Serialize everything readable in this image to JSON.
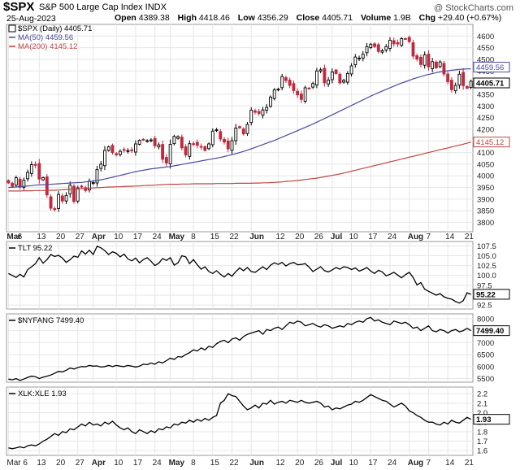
{
  "header": {
    "symbol": "$SPX",
    "name": "S&P 500 Large Cap Index INDX",
    "credit": "@ StockCharts.com",
    "date": "25-Aug-2023",
    "open_label": "Open",
    "open": "4389.38",
    "high_label": "High",
    "high": "4418.46",
    "low_label": "Low",
    "low": "4356.29",
    "close_label": "Close",
    "close": "4405.71",
    "volume_label": "Volume",
    "volume": "1.9B",
    "chg_label": "Chg",
    "chg": "+29.40 (+0.67%)"
  },
  "colors": {
    "up_candle": "#000000",
    "down_candle": "#c0283c",
    "ma50": "#4a4aa0",
    "ma200": "#c04444",
    "grid": "#e6e6e6",
    "line": "#000000"
  },
  "x_axis": {
    "labels": [
      "Mar",
      "6",
      "13",
      "20",
      "27",
      "Apr",
      "10",
      "17",
      "24",
      "May",
      "8",
      "15",
      "22",
      "Jun",
      "12",
      "20",
      "26",
      "Jul",
      "10",
      "17",
      "24",
      "Aug",
      "7",
      "14",
      "21"
    ],
    "bold": [
      "Mar",
      "Apr",
      "May",
      "Jun",
      "Jul",
      "Aug"
    ],
    "bottom_labels": [
      "Mar",
      "6",
      "13",
      "20",
      "27",
      "Apr",
      "10",
      "17",
      "24",
      "May",
      "8",
      "15",
      "22",
      "Jun",
      "12",
      "20",
      "26",
      "Jul",
      "10",
      "17",
      "24",
      "Aug",
      "7",
      "14",
      "21"
    ],
    "bottom_bold": [
      "Apr",
      "May",
      "Jun",
      "Jul",
      "Aug"
    ],
    "bottom_first": "Mar 6"
  },
  "chart_data": [
    {
      "type": "candlestick",
      "title": "$SPX (Daily) 4405.71",
      "series": [
        {
          "name": "$SPX (Daily) 4405.71",
          "close": [
            3970,
            3955,
            3992,
            3951,
            3981,
            4015,
            4048,
            4045,
            3986,
            3992,
            3918,
            3861,
            3855,
            3920,
            3892,
            3916,
            3960,
            3890,
            3948,
            3952,
            3937,
            3977,
            3971,
            4027,
            4050,
            4109,
            4124,
            4100,
            4090,
            4105,
            4109,
            4108,
            4110,
            4137,
            4152,
            4155,
            4151,
            4154,
            4129,
            4133,
            4071,
            4055,
            4135,
            4169,
            4168,
            4120,
            4090,
            4138,
            4137,
            4131,
            4124,
            4109,
            4137,
            4192,
            4198,
            4158,
            4145,
            4116,
            4151,
            4205,
            4206,
            4180,
            4221,
            4282,
            4273,
            4268,
            4283,
            4294,
            4338,
            4369,
            4372,
            4426,
            4409,
            4388,
            4366,
            4348,
            4328,
            4378,
            4376,
            4396,
            4450,
            4455,
            4399,
            4411,
            4446,
            4439,
            4399,
            4410,
            4439,
            4472,
            4510,
            4505,
            4522,
            4555,
            4565,
            4555,
            4534,
            4537,
            4555,
            4582,
            4567,
            4566,
            4589,
            4588,
            4576,
            4514,
            4501,
            4478,
            4519,
            4468,
            4490,
            4464,
            4489,
            4437,
            4404,
            4370,
            4388,
            4436,
            4387,
            4376,
            4406
          ]
        },
        {
          "name": "MA(50) 4459.56",
          "values": [
            3950,
            3951,
            3952,
            3954,
            3955,
            3957,
            3958,
            3960,
            3961,
            3962,
            3963,
            3964,
            3965,
            3966,
            3967,
            3968,
            3969,
            3970,
            3971,
            3972,
            3974,
            3976,
            3978,
            3980,
            3983,
            3986,
            3990,
            3994,
            3998,
            4002,
            4006,
            4010,
            4014,
            4018,
            4021,
            4024,
            4027,
            4030,
            4032,
            4034,
            4036,
            4038,
            4040,
            4043,
            4046,
            4049,
            4052,
            4055,
            4058,
            4061,
            4064,
            4067,
            4070,
            4073,
            4076,
            4079,
            4083,
            4087,
            4091,
            4095,
            4100,
            4105,
            4110,
            4116,
            4122,
            4128,
            4134,
            4140,
            4146,
            4152,
            4159,
            4166,
            4173,
            4180,
            4187,
            4194,
            4201,
            4208,
            4215,
            4222,
            4230,
            4238,
            4246,
            4254,
            4262,
            4270,
            4278,
            4286,
            4294,
            4302,
            4310,
            4318,
            4326,
            4334,
            4342,
            4350,
            4357,
            4364,
            4371,
            4378,
            4385,
            4392,
            4398,
            4404,
            4410,
            4416,
            4421,
            4426,
            4431,
            4435,
            4439,
            4443,
            4446,
            4449,
            4451,
            4453,
            4455,
            4457,
            4458,
            4459,
            4459.56
          ]
        },
        {
          "name": "MA(200) 4145.12",
          "values": [
            3935,
            3935,
            3935,
            3935,
            3936,
            3936,
            3936,
            3937,
            3937,
            3937,
            3937,
            3938,
            3938,
            3939,
            3940,
            3941,
            3942,
            3943,
            3944,
            3945,
            3946,
            3947,
            3948,
            3949,
            3950,
            3951,
            3952,
            3952,
            3953,
            3953,
            3954,
            3955,
            3955,
            3956,
            3957,
            3958,
            3959,
            3959,
            3960,
            3961,
            3962,
            3963,
            3964,
            3964,
            3964,
            3965,
            3965,
            3965,
            3966,
            3966,
            3966,
            3966,
            3966,
            3966,
            3967,
            3967,
            3967,
            3967,
            3967,
            3968,
            3968,
            3968,
            3968,
            3968,
            3969,
            3969,
            3970,
            3970,
            3971,
            3972,
            3973,
            3974,
            3976,
            3977,
            3978,
            3980,
            3982,
            3984,
            3986,
            3988,
            3990,
            3993,
            3996,
            3999,
            4002,
            4005,
            4008,
            4012,
            4016,
            4020,
            4024,
            4028,
            4032,
            4036,
            4040,
            4044,
            4048,
            4052,
            4056,
            4060,
            4064,
            4068,
            4072,
            4076,
            4080,
            4084,
            4088,
            4092,
            4096,
            4100,
            4104,
            4108,
            4112,
            4116,
            4120,
            4124,
            4128,
            4132,
            4136,
            4140,
            4145.12
          ]
        }
      ],
      "ylim": [
        3760,
        4650
      ],
      "yticks": [
        3800,
        3850,
        3900,
        3950,
        4000,
        4050,
        4100,
        4150,
        4200,
        4250,
        4300,
        4350,
        4400,
        4450,
        4500,
        4550,
        4600
      ],
      "last_value": "4405.71",
      "ma50_value": "4459.56",
      "ma200_value": "4145.12",
      "grid": true
    },
    {
      "type": "line",
      "series": [
        {
          "name": "TLT 95.22",
          "values": [
            100.5,
            100.0,
            99.5,
            100.3,
            99.6,
            101.5,
            102.2,
            103.0,
            104.5,
            103.1,
            104.0,
            105.3,
            104.8,
            105.1,
            104.4,
            103.3,
            104.0,
            104.9,
            104.6,
            106.2,
            105.4,
            106.4,
            105.3,
            107.4,
            107.0,
            106.3,
            105.3,
            106.0,
            105.6,
            104.7,
            105.4,
            104.2,
            103.7,
            104.4,
            103.2,
            104.0,
            104.5,
            103.6,
            102.5,
            103.1,
            104.3,
            103.8,
            104.5,
            102.6,
            103.2,
            105.0,
            104.7,
            103.0,
            104.0,
            102.7,
            101.6,
            102.2,
            101.0,
            100.5,
            101.2,
            100.3,
            99.6,
            100.5,
            99.8,
            101.0,
            101.9,
            101.2,
            102.0,
            101.0,
            100.8,
            101.5,
            102.2,
            101.5,
            102.6,
            103.2,
            102.8,
            103.3,
            102.4,
            103.0,
            103.3,
            102.7,
            102.8,
            103.0,
            102.1,
            101.0,
            101.6,
            102.2,
            101.2,
            100.9,
            101.4,
            102.0,
            101.6,
            102.2,
            102.0,
            101.5,
            101.9,
            101.1,
            101.5,
            102.0,
            101.1,
            100.5,
            101.3,
            100.9,
            99.9,
            100.3,
            100.8,
            100.1,
            99.4,
            100.2,
            100.8,
            99.5,
            97.6,
            98.2,
            96.5,
            96.0,
            95.5,
            95.0,
            95.4,
            94.6,
            94.2,
            94.0,
            93.4,
            93.0,
            93.6,
            95.6,
            95.22
          ]
        }
      ],
      "ylim": [
        91.5,
        108.6
      ],
      "yticks": [
        92.5,
        95.0,
        97.5,
        100.0,
        102.5,
        105.0,
        107.5
      ],
      "last_value": "95.22",
      "grid": true
    },
    {
      "type": "line",
      "series": [
        {
          "name": "$NYFANG 7499.40",
          "values": [
            5480,
            5450,
            5500,
            5420,
            5480,
            5550,
            5600,
            5580,
            5500,
            5560,
            5600,
            5650,
            5720,
            5800,
            5780,
            5850,
            5940,
            5900,
            5960,
            6000,
            5990,
            6050,
            6020,
            6030,
            5980,
            6000,
            6050,
            6000,
            6050,
            6020,
            6000,
            6050,
            6020,
            5980,
            6020,
            6100,
            6080,
            6150,
            6100,
            6200,
            6150,
            6250,
            6350,
            6300,
            6420,
            6400,
            6500,
            6580,
            6700,
            6650,
            6780,
            6700,
            6850,
            6800,
            6950,
            7050,
            7100,
            7000,
            7150,
            7200,
            7100,
            7250,
            7350,
            7400,
            7450,
            7500,
            7350,
            7550,
            7500,
            7600,
            7650,
            7550,
            7700,
            7850,
            7800,
            7900,
            7850,
            7700,
            7750,
            7800,
            7700,
            7650,
            7750,
            7700,
            7600,
            7650,
            7700,
            7650,
            7800,
            7750,
            7850,
            7900,
            7850,
            8000,
            8050,
            7900,
            7950,
            7850,
            7800,
            7750,
            7900,
            7850,
            7800,
            7850,
            7750,
            7600,
            7650,
            7500,
            7600,
            7700,
            7500,
            7450,
            7550,
            7500,
            7400,
            7500,
            7550,
            7450,
            7500,
            7600,
            7499.4
          ]
        }
      ],
      "ylim": [
        5350,
        8200
      ],
      "yticks": [
        5500,
        6000,
        6500,
        7000,
        7500,
        8000
      ],
      "last_value": "7499.40",
      "grid": true
    },
    {
      "type": "line",
      "series": [
        {
          "name": "XLK:XLE 1.93",
          "values": [
            1.63,
            1.62,
            1.63,
            1.64,
            1.63,
            1.65,
            1.66,
            1.65,
            1.67,
            1.7,
            1.72,
            1.75,
            1.78,
            1.76,
            1.8,
            1.79,
            1.83,
            1.82,
            1.85,
            1.88,
            1.86,
            1.9,
            1.87,
            1.88,
            1.86,
            1.9,
            1.88,
            1.91,
            1.87,
            1.84,
            1.82,
            1.84,
            1.8,
            1.78,
            1.82,
            1.8,
            1.78,
            1.81,
            1.79,
            1.83,
            1.82,
            1.85,
            1.84,
            1.88,
            1.87,
            1.9,
            1.89,
            1.92,
            1.9,
            1.93,
            1.91,
            1.94,
            1.92,
            1.95,
            1.97,
            2.1,
            2.13,
            2.2,
            2.18,
            2.17,
            2.12,
            2.07,
            2.03,
            2.05,
            2.08,
            2.05,
            2.1,
            2.09,
            2.13,
            2.09,
            2.11,
            2.12,
            2.1,
            2.13,
            2.12,
            2.11,
            2.13,
            2.11,
            2.1,
            2.11,
            2.12,
            2.1,
            2.06,
            2.07,
            2.03,
            2.05,
            2.04,
            2.06,
            2.08,
            2.09,
            2.12,
            2.11,
            2.13,
            2.16,
            2.19,
            2.17,
            2.15,
            2.13,
            2.12,
            2.09,
            2.06,
            2.08,
            2.1,
            2.07,
            2.02,
            2.0,
            1.97,
            1.95,
            1.92,
            1.9,
            1.9,
            1.88,
            1.87,
            1.9,
            1.88,
            1.92,
            1.9,
            1.89,
            1.92,
            1.95,
            1.93
          ]
        }
      ],
      "ylim": [
        1.55,
        2.27
      ],
      "yticks": [
        1.6,
        1.7,
        1.8,
        1.9,
        2.0,
        2.1,
        2.2
      ],
      "last_value": "1.93",
      "grid": true
    }
  ]
}
